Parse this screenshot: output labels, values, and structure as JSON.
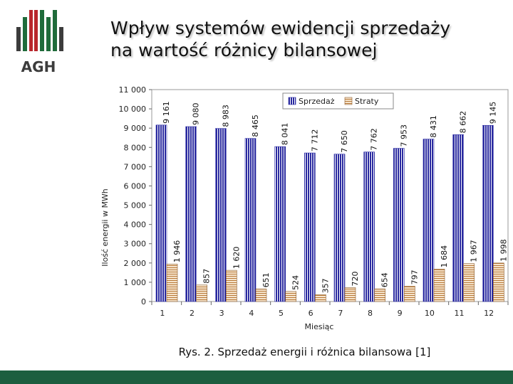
{
  "logo": {
    "text": "AGH",
    "colors": {
      "red": "#b8262c",
      "green": "#1f6b3a",
      "gray": "#3c3c3c"
    }
  },
  "title": {
    "line1": "Wpływ systemów ewidencji sprzedaży",
    "line2": "na wartość różnicy bilansowej"
  },
  "caption": "Rys. 2. Sprzedaż energii i różnica bilansowa [1]",
  "chart_data": {
    "type": "bar",
    "categories": [
      "1",
      "2",
      "3",
      "4",
      "5",
      "6",
      "7",
      "8",
      "9",
      "10",
      "11",
      "12"
    ],
    "series": [
      {
        "name": "Sprzedaż",
        "color": "#2a2aa0",
        "values": [
          9161,
          9080,
          8983,
          8465,
          8041,
          7712,
          7650,
          7762,
          7953,
          8431,
          8662,
          9145
        ],
        "labels": [
          "9 161",
          "9 080",
          "8 983",
          "8 465",
          "8 041",
          "7 712",
          "7 650",
          "7 762",
          "7 953",
          "8 431",
          "8 662",
          "9 145"
        ]
      },
      {
        "name": "Straty",
        "color": "#d8a070",
        "values": [
          1946,
          857,
          1620,
          651,
          524,
          357,
          720,
          654,
          797,
          1684,
          1967,
          1998
        ],
        "labels": [
          "1 946",
          "857",
          "1 620",
          "651",
          "524",
          "357",
          "720",
          "654",
          "797",
          "1 684",
          "1 967",
          "1 998"
        ]
      }
    ],
    "xlabel": "Miesiąc",
    "ylabel": "Ilość energii w MWh",
    "ylim": [
      0,
      11000
    ],
    "yticks": [
      0,
      1000,
      2000,
      3000,
      4000,
      5000,
      6000,
      7000,
      8000,
      9000,
      10000,
      11000
    ],
    "ytick_labels": [
      "0",
      "1 000",
      "2 000",
      "3 000",
      "4 000",
      "5 000",
      "6 000",
      "7 000",
      "8 000",
      "9 000",
      "10 000",
      "11 000"
    ],
    "legend_position": "top-right",
    "grid": false
  }
}
